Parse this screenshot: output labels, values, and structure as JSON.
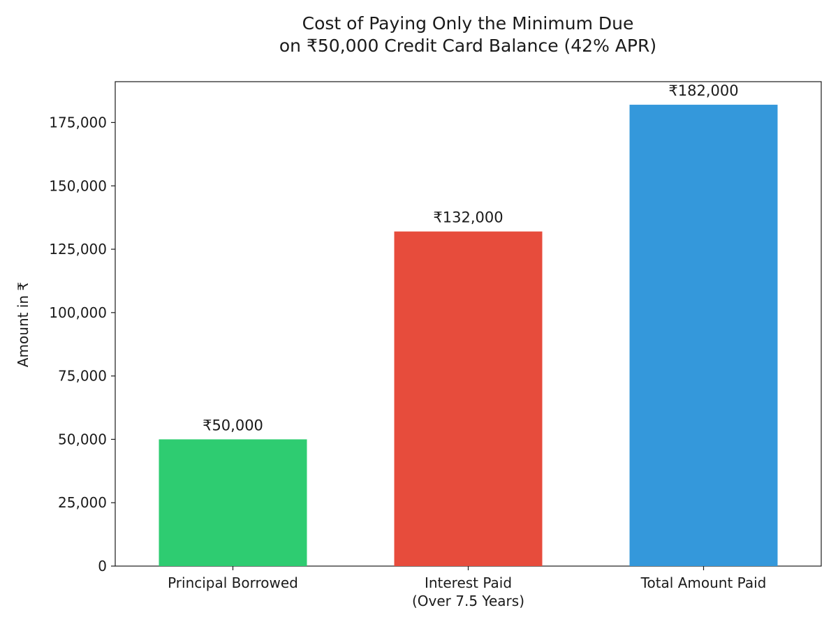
{
  "chart_data": {
    "type": "bar",
    "title_lines": [
      "Cost of Paying Only the Minimum Due",
      "on ₹50,000 Credit Card Balance (42% APR)"
    ],
    "xlabel": "",
    "ylabel": "Amount in ₹",
    "categories": [
      [
        "Principal Borrowed"
      ],
      [
        "Interest Paid",
        "(Over 7.5 Years)"
      ],
      [
        "Total Amount Paid"
      ]
    ],
    "values": [
      50000,
      132000,
      182000
    ],
    "data_labels": [
      "₹50,000",
      "₹132,000",
      "₹182,000"
    ],
    "colors": [
      "#2ecc71",
      "#e74c3c",
      "#3498db"
    ],
    "ylim": [
      0,
      191100
    ],
    "yticks": [
      0,
      25000,
      50000,
      75000,
      100000,
      125000,
      150000,
      175000
    ],
    "ytick_labels": [
      "0",
      "25,000",
      "50,000",
      "75,000",
      "100,000",
      "125,000",
      "150,000",
      "175,000"
    ],
    "grid": false,
    "legend": "none"
  }
}
